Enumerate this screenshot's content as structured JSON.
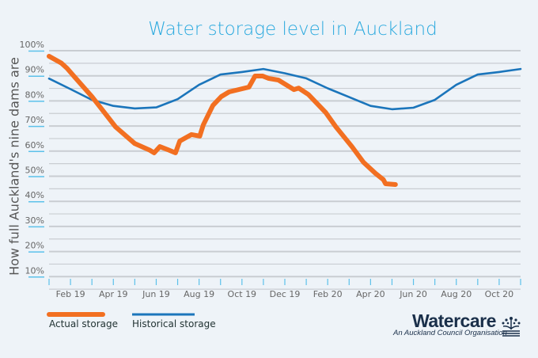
{
  "chart_data": {
    "type": "line",
    "title": "Water storage level in Auckland",
    "ylabel": "How full Auckland's nine dams are",
    "xlabel": "",
    "ylim": [
      0,
      100
    ],
    "xlim": [
      "2019-01-01",
      "2020-11-01"
    ],
    "yticks": [
      "10%",
      "20%",
      "30%",
      "40%",
      "50%",
      "60%",
      "70%",
      "80%",
      "90%",
      "100%"
    ],
    "ytick_values": [
      10,
      20,
      30,
      40,
      50,
      60,
      70,
      80,
      90,
      100
    ],
    "xtick_labels": [
      "Feb 19",
      "Apr 19",
      "Jun 19",
      "Aug 19",
      "Oct 19",
      "Dec 19",
      "Feb 20",
      "Apr 20",
      "Jun 20",
      "Aug 20",
      "Oct 20"
    ],
    "xtick_dates": [
      "2019-02-01",
      "2019-04-01",
      "2019-06-01",
      "2019-08-01",
      "2019-10-01",
      "2019-12-01",
      "2020-02-01",
      "2020-04-01",
      "2020-06-01",
      "2020-08-01",
      "2020-10-01"
    ],
    "grid": true,
    "legend_position": "bottom-left",
    "series": [
      {
        "name": "Actual storage",
        "color": "#f26f21",
        "x": [
          "2019-01-01",
          "2019-01-19",
          "2019-01-27",
          "2019-02-07",
          "2019-03-01",
          "2019-03-28",
          "2019-04-04",
          "2019-05-01",
          "2019-05-23",
          "2019-05-29",
          "2019-06-06",
          "2019-06-17",
          "2019-06-28",
          "2019-07-04",
          "2019-07-21",
          "2019-08-02",
          "2019-08-07",
          "2019-08-21",
          "2019-09-02",
          "2019-09-13",
          "2019-10-11",
          "2019-10-20",
          "2019-10-31",
          "2019-11-08",
          "2019-11-22",
          "2019-12-14",
          "2019-12-21",
          "2020-01-04",
          "2020-01-29",
          "2020-02-12",
          "2020-03-05",
          "2020-03-22",
          "2020-04-08",
          "2020-04-19",
          "2020-04-22",
          "2020-05-06"
        ],
        "y": [
          97.8,
          95,
          93,
          89.3,
          81.7,
          72.2,
          69.7,
          63,
          60.3,
          59.3,
          61.8,
          60.6,
          59.3,
          64,
          66.6,
          66,
          70.4,
          78.2,
          81.7,
          83.6,
          85.5,
          89.9,
          89.9,
          89,
          88.3,
          84.5,
          85.1,
          82.6,
          75.4,
          69.7,
          61.8,
          55.5,
          51.1,
          48.6,
          47,
          46.7
        ]
      },
      {
        "name": "Historical storage",
        "color": "#1b75bb",
        "x": [
          "2019-01-01",
          "2019-02-01",
          "2019-03-01",
          "2019-04-01",
          "2019-05-01",
          "2019-06-01",
          "2019-07-01",
          "2019-08-01",
          "2019-09-01",
          "2019-10-01",
          "2019-11-01",
          "2019-12-01",
          "2020-01-01",
          "2020-02-01",
          "2020-03-01",
          "2020-04-01",
          "2020-05-01",
          "2020-06-01",
          "2020-07-01",
          "2020-08-01",
          "2020-09-01",
          "2020-10-01",
          "2020-11-01"
        ],
        "y": [
          88.9,
          84.7,
          80.4,
          78,
          77,
          77.4,
          80.7,
          86.4,
          90.5,
          91.5,
          92.7,
          91,
          89,
          85,
          81.5,
          78,
          76.7,
          77.3,
          80.4,
          86.4,
          90.5,
          91.5,
          92.7
        ]
      }
    ]
  },
  "branding": {
    "name": "Watercare",
    "tagline": "An Auckland Council Organisation"
  }
}
